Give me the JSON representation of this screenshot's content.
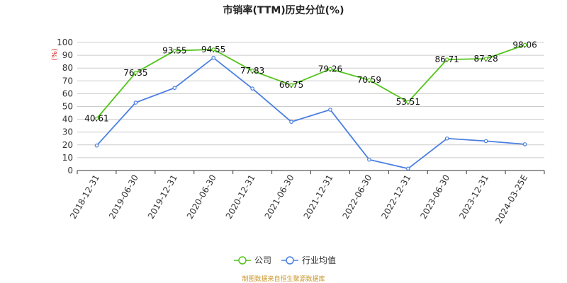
{
  "colors": {
    "company": "#52c41a",
    "industry": "#4a7fe0",
    "grid": "#cccccc",
    "axis": "#333333",
    "unit": "#e02020",
    "source": "#c8962a"
  },
  "source_note": "制图数据来自恒生聚源数据库",
  "chart_data": {
    "type": "line",
    "title": "市销率(TTM)历史分位(%)",
    "ylabel": "(%)",
    "xlabel": "",
    "ylim": [
      0,
      100
    ],
    "yticks": [
      0,
      10,
      20,
      30,
      40,
      50,
      60,
      70,
      80,
      90,
      100
    ],
    "grid": true,
    "legend_position": "bottom-center",
    "x": [
      "2018-12-31",
      "2019-06-30",
      "2019-12-31",
      "2020-06-30",
      "2020-12-31",
      "2021-06-30",
      "2021-12-31",
      "2022-06-30",
      "2022-12-31",
      "2023-06-30",
      "2023-12-31",
      "2024-03-25E"
    ],
    "series": [
      {
        "name": "公司",
        "values": [
          40.61,
          76.35,
          93.55,
          94.55,
          77.83,
          66.75,
          79.26,
          70.59,
          53.51,
          86.71,
          87.28,
          98.06
        ],
        "data_labels": [
          "40.61",
          "76.35",
          "93.55",
          "94.55",
          "77.83",
          "66.75",
          "79.26",
          "70.59",
          "53.51",
          "86.71",
          "87.28",
          "98.06"
        ],
        "color": "#52c41a"
      },
      {
        "name": "行业均值",
        "values": [
          19.5,
          53,
          64.5,
          88,
          64,
          38,
          47.5,
          8.5,
          1.5,
          25,
          23,
          20.5
        ],
        "color": "#4a7fe0"
      }
    ]
  }
}
